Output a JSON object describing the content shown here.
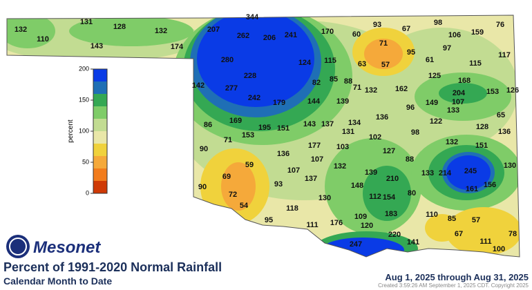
{
  "title": "Percent of 1991-2020 Normal Rainfall",
  "subtitle": "Calendar Month to Date",
  "date_range": "Aug 1, 2025 through Aug 31, 2025",
  "created": "Created 3:59:26 AM September 1, 2025 CDT. Copyright 2025",
  "logo": "Mesonet",
  "legend": {
    "label": "percent",
    "range": [
      0,
      200
    ],
    "ticks": [
      0,
      50,
      100,
      150,
      200
    ],
    "colors": [
      "#cf3a06",
      "#f27c1c",
      "#f5a93a",
      "#f0d23c",
      "#e9e7a8",
      "#c2dc92",
      "#7fcc68",
      "#34a853",
      "#1f6fb5",
      "#0a3be6"
    ]
  },
  "stations": [
    132,
    110,
    131,
    128,
    132,
    143,
    174,
    207,
    344,
    262,
    206,
    241,
    170,
    60,
    93,
    67,
    98,
    106,
    159,
    76,
    71,
    95,
    97,
    117,
    280,
    124,
    115,
    63,
    57,
    61,
    115,
    228,
    82,
    85,
    88,
    71,
    132,
    125,
    168,
    153,
    126,
    142,
    277,
    242,
    179,
    144,
    139,
    162,
    204,
    149,
    107,
    133,
    96,
    65,
    136,
    169,
    86,
    195,
    151,
    143,
    137,
    134,
    131,
    122,
    128,
    136,
    153,
    71,
    102,
    98,
    132,
    151,
    90,
    177,
    103,
    127,
    136,
    107,
    88,
    130,
    59,
    107,
    132,
    139,
    133,
    214,
    245,
    69,
    137,
    148,
    210,
    161,
    156,
    90,
    72,
    93,
    112,
    154,
    80,
    130,
    54,
    118,
    109,
    183,
    110,
    85,
    57,
    95,
    111,
    176,
    120,
    220,
    78,
    67,
    247,
    141,
    111,
    100
  ]
}
